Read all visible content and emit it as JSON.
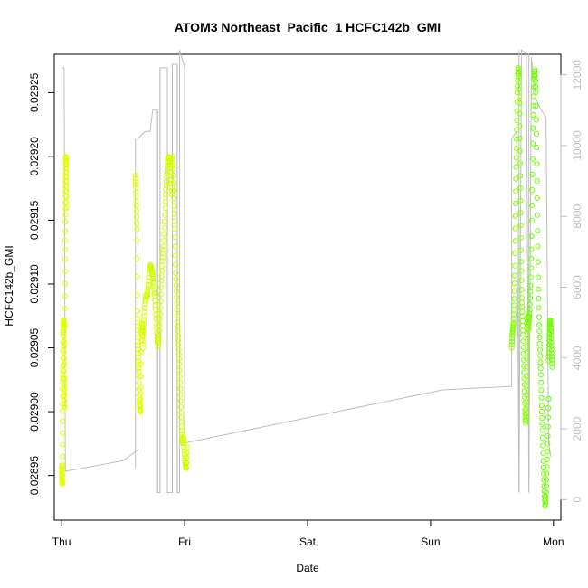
{
  "chart_data": {
    "type": "scatter",
    "title": "ATOM3 Northeast_Pacific_1 HCFC142b_GMI",
    "xlabel": "Date",
    "ylabel": "HCFC142b_GMI",
    "x_ticks": [
      "Thu",
      "Fri",
      "Sat",
      "Sun",
      "Mon"
    ],
    "xlim": [
      -0.06,
      4.06
    ],
    "y_ticks": [
      "0.02895",
      "0.02900",
      "0.02905",
      "0.02910",
      "0.02915",
      "0.02920",
      "0.02925"
    ],
    "ylim": [
      0.028915,
      0.02928
    ],
    "y2_ticks": [
      "0",
      "2000",
      "4000",
      "6000",
      "8000",
      "10000",
      "12000"
    ],
    "y2lim": [
      -580,
      12580
    ],
    "colors": {
      "points_low": "#ffff00",
      "points_high": "#66ff00",
      "altitude_line": "#bebebe",
      "axis": "#000000",
      "secondary_axis": "#bebebe"
    },
    "point_series": [
      {
        "x_start": 0.0,
        "x_end": 0.04,
        "values": [
          0.028958,
          0.028952,
          0.028946,
          0.028943,
          0.02896,
          0.028998,
          0.029022,
          0.029035,
          0.02906,
          0.029068,
          0.029072,
          0.029058,
          0.02904,
          0.029018,
          0.029002,
          0.029022,
          0.02908,
          0.02912,
          0.02915,
          0.02917,
          0.029185,
          0.029198,
          0.0292,
          0.029192,
          0.029178,
          0.02916
        ],
        "shade": 0.15
      },
      {
        "x_start": 0.6,
        "x_end": 0.66,
        "values": [
          0.029185,
          0.029175,
          0.02916,
          0.02914,
          0.02908,
          0.029055,
          0.029042,
          0.02903,
          0.02901,
          0.029002,
          0.029,
          0.02902,
          0.02906,
          0.02907,
          0.029062,
          0.02905
        ],
        "shade": 0.15
      },
      {
        "x_start": 0.66,
        "x_end": 0.9,
        "values": [
          0.02906,
          0.029072,
          0.029085,
          0.029092,
          0.02909,
          0.029098,
          0.02911,
          0.029115,
          0.029112,
          0.029108,
          0.0291,
          0.02909,
          0.029075,
          0.02906,
          0.02905,
          0.029062,
          0.02908,
          0.029102,
          0.029118,
          0.02913,
          0.02915,
          0.029172,
          0.029185,
          0.029198,
          0.0292,
          0.029194,
          0.029182,
          0.02917
        ],
        "shade": 0.25
      },
      {
        "x_start": 0.9,
        "x_end": 1.02,
        "values": [
          0.0292,
          0.02919,
          0.029165,
          0.02914,
          0.02911,
          0.02909,
          0.02907,
          0.029055,
          0.02904,
          0.02902,
          0.029,
          0.028985,
          0.028975,
          0.02898,
          0.028968,
          0.028958,
          0.028955,
          0.028972
        ],
        "shade": 0.25
      },
      {
        "x_start": 3.66,
        "x_end": 3.8,
        "values": [
          0.02905,
          0.02906,
          0.029065,
          0.02907,
          0.029085,
          0.02911,
          0.02915,
          0.02919,
          0.02922,
          0.02925,
          0.02927,
          0.029262,
          0.02924,
          0.0292,
          0.02916,
          0.02912,
          0.02909,
          0.029075,
          0.02906,
          0.02904,
          0.02902,
          0.029,
          0.02899,
          0.02901,
          0.02904,
          0.02906,
          0.029075,
          0.029065
        ],
        "shade": 0.75
      },
      {
        "x_start": 3.8,
        "x_end": 3.96,
        "values": [
          0.02907,
          0.02908,
          0.0291,
          0.02913,
          0.02918,
          0.02923,
          0.02926,
          0.029268,
          0.02925,
          0.029205,
          0.02915,
          0.0291,
          0.02907,
          0.02905,
          0.02903,
          0.029005,
          0.028985,
          0.02896,
          0.02894,
          0.028925,
          0.028935,
          0.028955,
          0.02898,
          0.02901
        ],
        "shade": 0.9
      },
      {
        "x_start": 3.96,
        "x_end": 3.99,
        "values": [
          0.02904,
          0.029055,
          0.029068,
          0.029072,
          0.029062,
          0.029048,
          0.029035
        ],
        "shade": 0.9
      }
    ],
    "altitude_line": [
      [
        0.0,
        12200
      ],
      [
        0.02,
        12200
      ],
      [
        0.03,
        800
      ],
      [
        0.5,
        1100
      ],
      [
        0.62,
        1400
      ],
      [
        0.62,
        10200
      ],
      [
        0.68,
        10400
      ],
      [
        0.72,
        10400
      ],
      [
        0.74,
        11000
      ],
      [
        0.78,
        11000
      ],
      [
        0.78,
        200
      ],
      [
        0.8,
        200
      ],
      [
        0.8,
        12200
      ],
      [
        0.86,
        12200
      ],
      [
        0.86,
        200
      ],
      [
        0.9,
        200
      ],
      [
        0.9,
        12300
      ],
      [
        0.94,
        12300
      ],
      [
        0.94,
        200
      ],
      [
        0.96,
        200
      ],
      [
        0.96,
        12700
      ],
      [
        1.0,
        12200
      ],
      [
        1.0,
        1600
      ],
      [
        3.1,
        3100
      ],
      [
        3.66,
        3200
      ],
      [
        3.66,
        10200
      ],
      [
        3.7,
        10400
      ],
      [
        3.72,
        200
      ],
      [
        3.74,
        12700
      ],
      [
        3.78,
        12600
      ],
      [
        3.8,
        200
      ],
      [
        3.82,
        12500
      ],
      [
        3.86,
        11300
      ],
      [
        3.9,
        11000
      ],
      [
        3.94,
        10800
      ],
      [
        3.96,
        1600
      ],
      [
        3.98,
        1200
      ]
    ],
    "vertical_spikes": [
      {
        "x": 0.6,
        "y2_from": 900,
        "y2_to": 10200
      },
      {
        "x": 0.78,
        "y2_from": 200,
        "y2_to": 11000
      },
      {
        "x": 0.8,
        "y2_from": 200,
        "y2_to": 12200
      },
      {
        "x": 0.86,
        "y2_from": 200,
        "y2_to": 12200
      },
      {
        "x": 0.9,
        "y2_from": 200,
        "y2_to": 12300
      },
      {
        "x": 0.94,
        "y2_from": 200,
        "y2_to": 12300
      },
      {
        "x": 3.72,
        "y2_from": 200,
        "y2_to": 12700
      },
      {
        "x": 3.8,
        "y2_from": 200,
        "y2_to": 12600
      }
    ]
  }
}
